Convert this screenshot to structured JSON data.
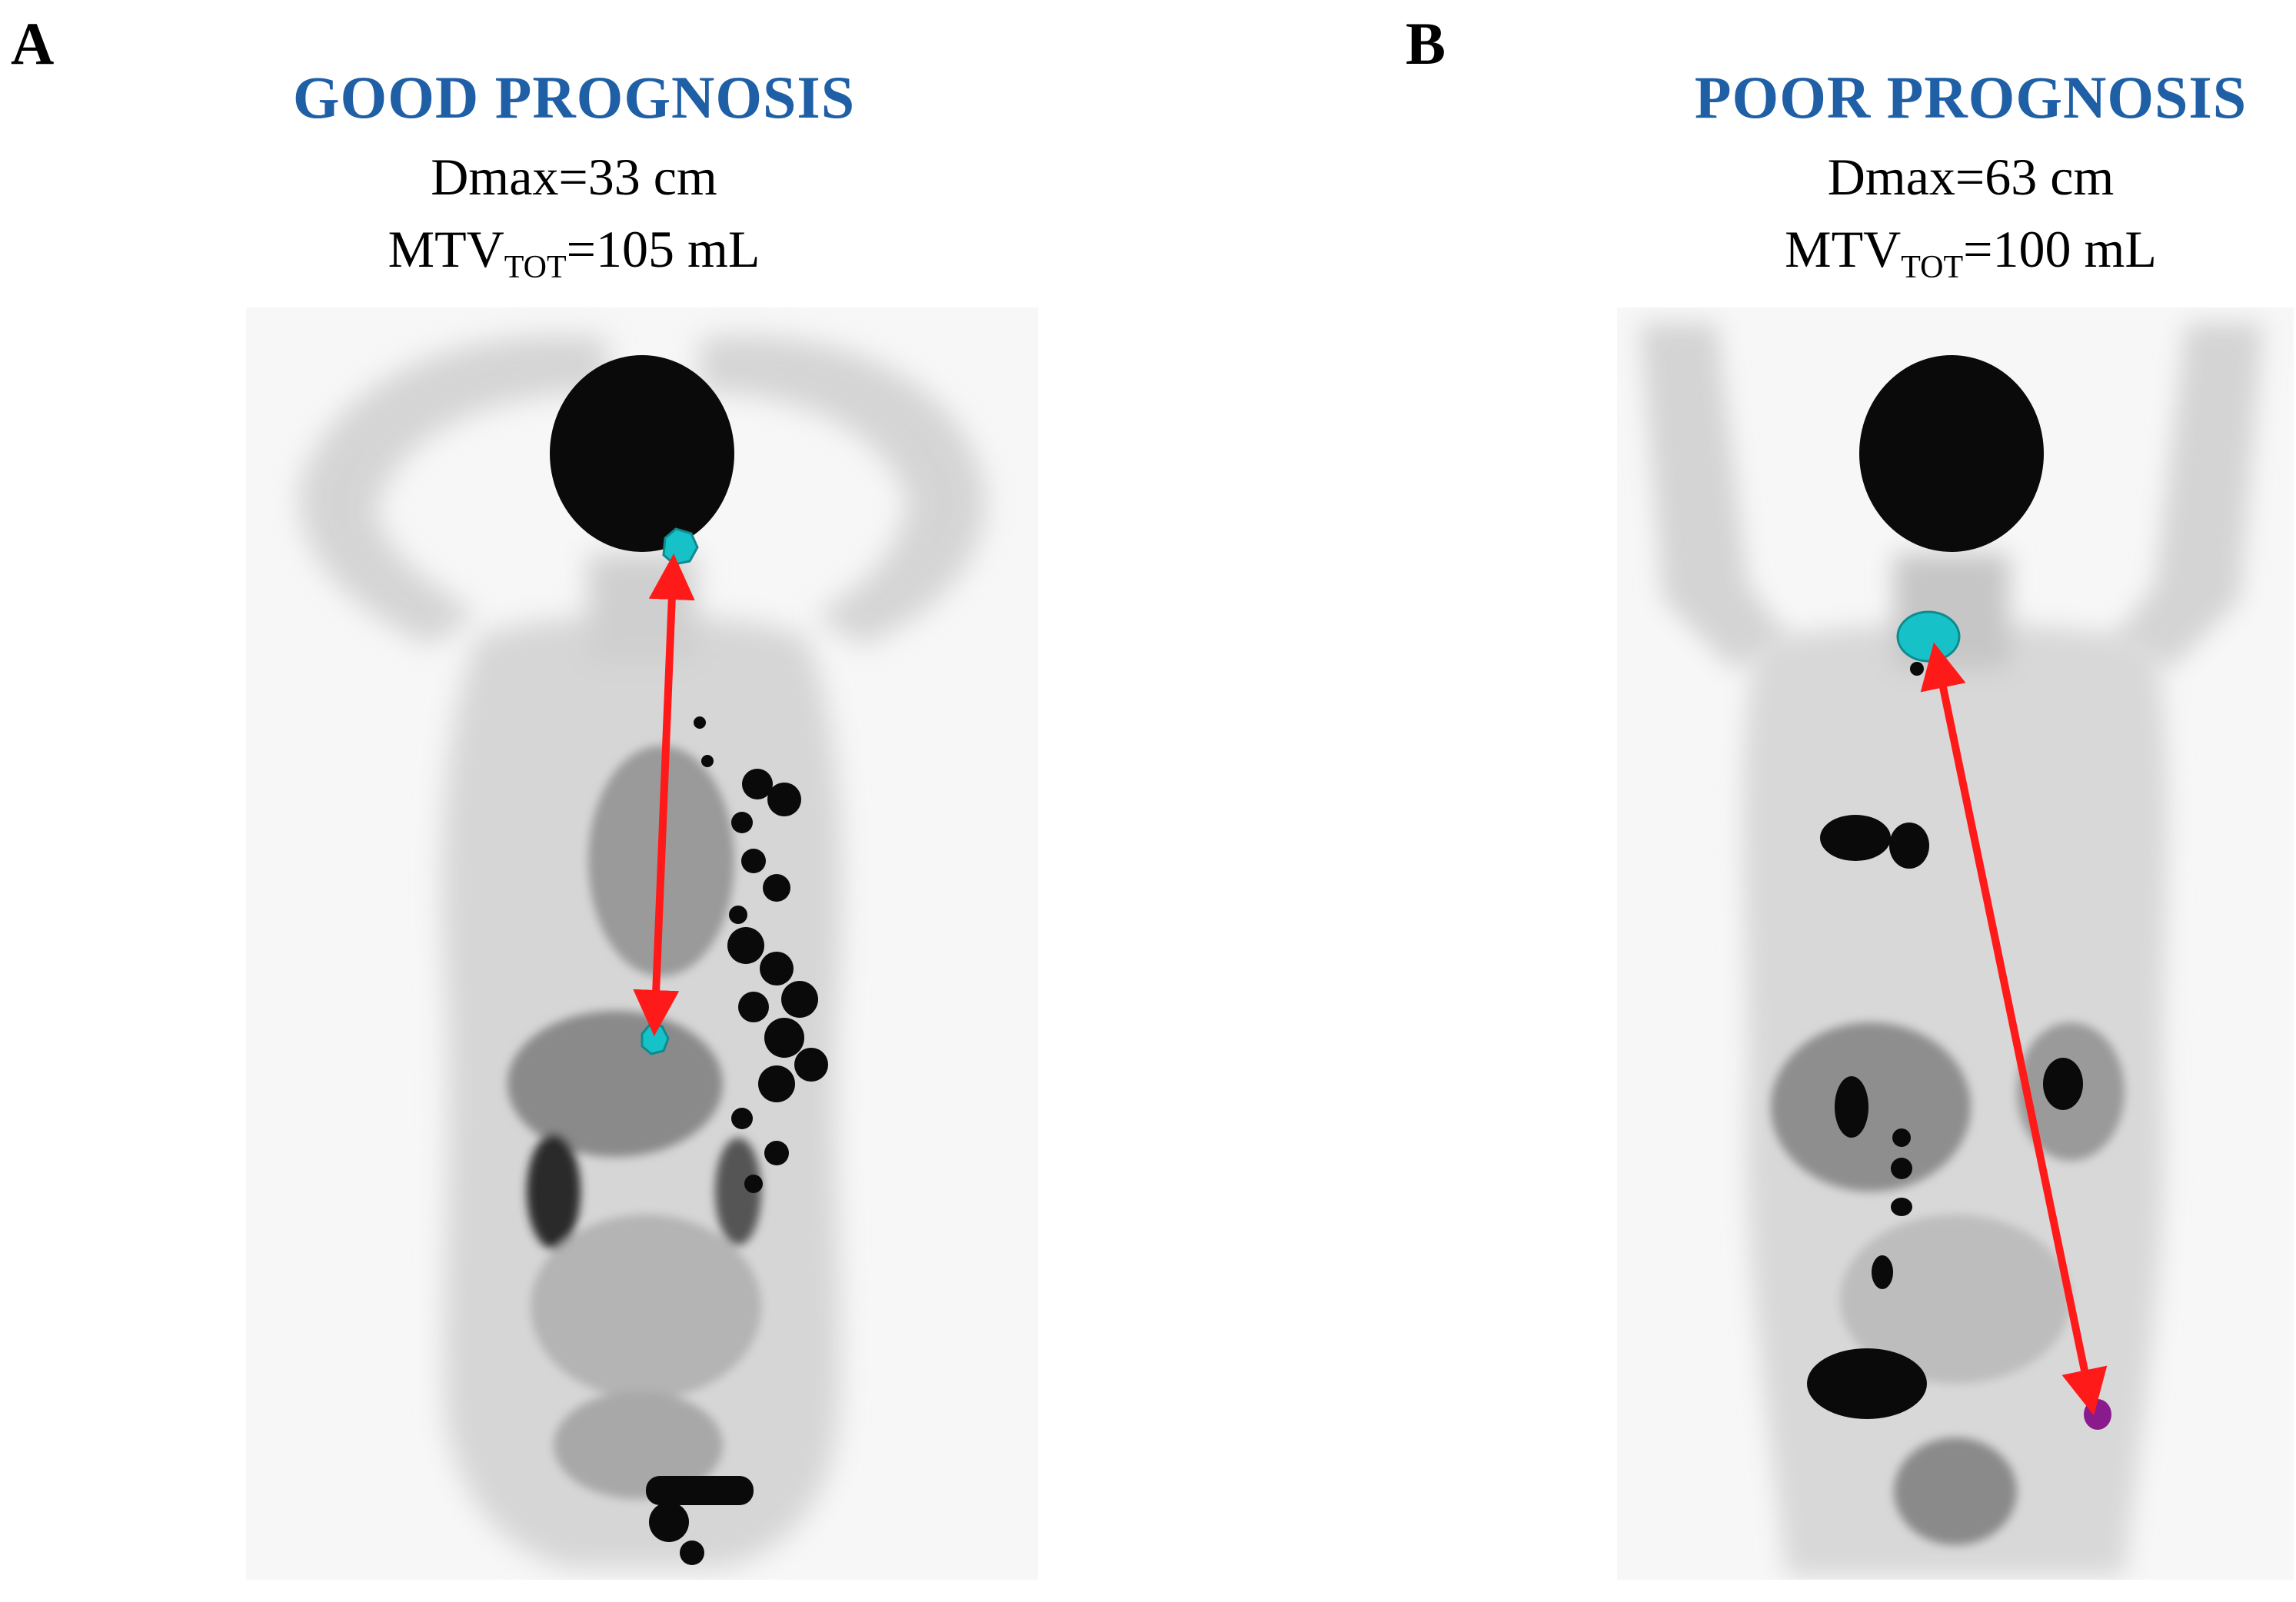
{
  "colors": {
    "title": "#1f5fa6",
    "arrow": "#ff1a1a",
    "lesion_cyan": "#16c2c8",
    "lesion_purple": "#8a1b8c",
    "uptake_dark": "#0a0a0a",
    "soft_tissue": "#c8c8c8"
  },
  "panels": [
    {
      "letter": "A",
      "title": "GOOD PROGNOSIS",
      "dmax": "Dmax=33 cm",
      "mtv_prefix": "MTV",
      "mtv_sub": "TOT",
      "mtv_suffix": "=105 mL"
    },
    {
      "letter": "B",
      "title": "POOR PROGNOSIS",
      "dmax": "Dmax=63 cm",
      "mtv_prefix": "MTV",
      "mtv_sub": "TOT",
      "mtv_suffix": "=100 mL"
    }
  ]
}
